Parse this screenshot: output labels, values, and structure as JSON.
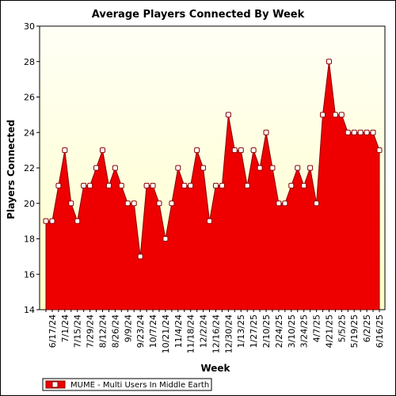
{
  "chart_data": {
    "type": "area",
    "title": "Average Players Connected By Week",
    "xlabel": "Week",
    "ylabel": "Players Connected",
    "ylim": [
      14,
      30
    ],
    "y_ticks": [
      14,
      16,
      18,
      20,
      22,
      24,
      26,
      28,
      30
    ],
    "grid": false,
    "legend_position": "bottom-left",
    "x": [
      "6/10/24",
      "6/17/24",
      "6/24/24",
      "7/1/24",
      "7/8/24",
      "7/15/24",
      "7/22/24",
      "7/29/24",
      "8/5/24",
      "8/12/24",
      "8/19/24",
      "8/26/24",
      "9/2/24",
      "9/9/24",
      "9/16/24",
      "9/23/24",
      "9/30/24",
      "10/7/24",
      "10/14/24",
      "10/21/24",
      "10/28/24",
      "11/4/24",
      "11/11/24",
      "11/18/24",
      "11/25/24",
      "12/2/24",
      "12/9/24",
      "12/16/24",
      "12/23/24",
      "12/30/24",
      "1/6/25",
      "1/13/25",
      "1/20/25",
      "1/27/25",
      "2/3/25",
      "2/10/25",
      "2/17/25",
      "2/24/25",
      "3/3/25",
      "3/10/25",
      "3/17/25",
      "3/24/25",
      "3/31/25",
      "4/7/25",
      "4/14/25",
      "4/21/25",
      "4/28/25",
      "5/5/25",
      "5/12/25",
      "5/19/25",
      "5/26/25",
      "6/2/25",
      "6/9/25",
      "6/16/25"
    ],
    "x_tick_labels": [
      "6/17/24",
      "7/1/24",
      "7/15/24",
      "7/29/24",
      "8/12/24",
      "8/26/24",
      "9/9/24",
      "9/23/24",
      "10/7/24",
      "10/21/24",
      "11/4/24",
      "11/18/24",
      "12/2/24",
      "12/16/24",
      "12/30/24",
      "1/13/25",
      "1/27/25",
      "2/10/25",
      "2/24/25",
      "3/10/25",
      "3/24/25",
      "4/7/25",
      "4/21/25",
      "5/5/25",
      "5/19/25",
      "6/2/25",
      "6/16/25"
    ],
    "series": [
      {
        "name": "MUME - Multi Users In Middle Earth",
        "color": "#ee0000",
        "values": [
          19,
          19,
          21,
          23,
          20,
          19,
          21,
          21,
          22,
          23,
          21,
          22,
          21,
          20,
          20,
          17,
          21,
          21,
          20,
          18,
          20,
          22,
          21,
          21,
          23,
          22,
          19,
          21,
          21,
          25,
          23,
          23,
          21,
          23,
          22,
          24,
          22,
          20,
          20,
          21,
          22,
          21,
          22,
          20,
          25,
          28,
          25,
          25,
          24,
          24,
          24,
          24,
          24,
          23
        ]
      }
    ]
  },
  "colors": {
    "plot_background_top": "#fffff6",
    "plot_background_bottom": "#ffffc8",
    "area_fill": "#ee0000",
    "area_outline": "#8b0000",
    "marker_fill": "#ffffff"
  }
}
